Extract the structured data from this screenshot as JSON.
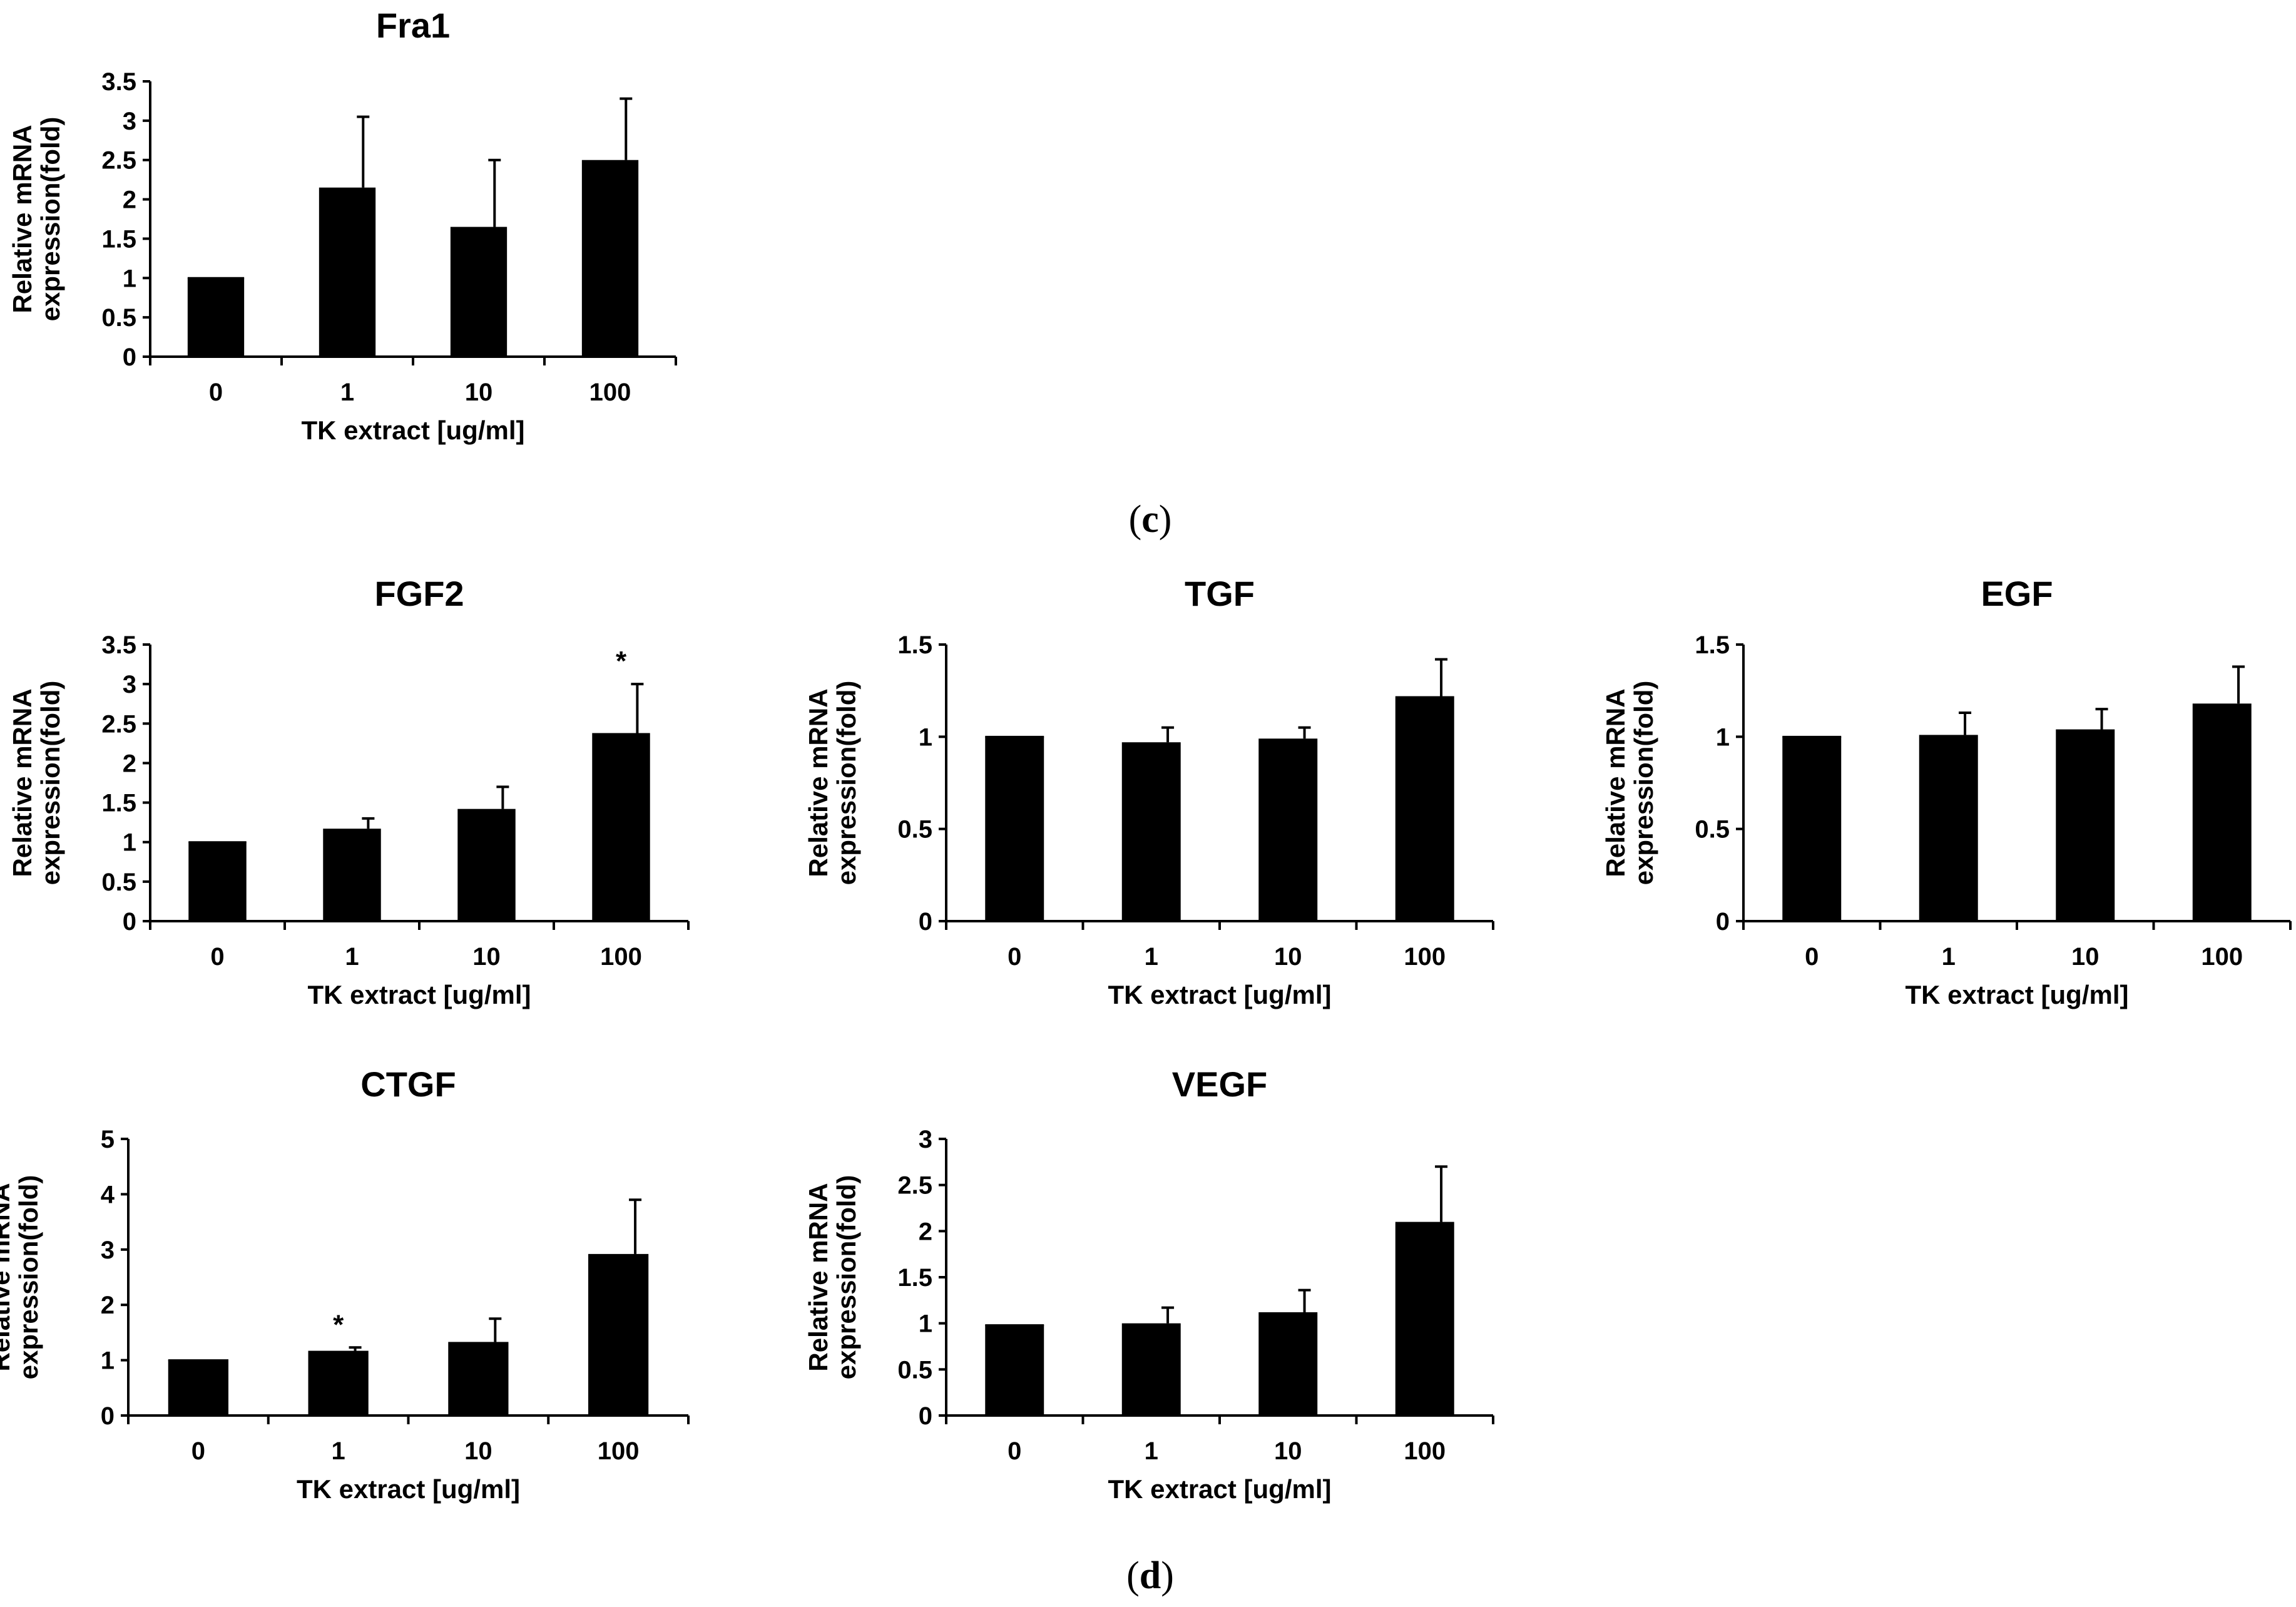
{
  "panel_labels": {
    "c": "c",
    "d": "d"
  },
  "chart_data": [
    {
      "id": "fra1",
      "type": "bar",
      "title": "Fra1",
      "xlabel": "TK extract [ug/ml]",
      "ylabel_lines": [
        "Relative mRNA",
        "expression(fold)"
      ],
      "categories": [
        "0",
        "1",
        "10",
        "100"
      ],
      "values": [
        1.0,
        2.15,
        1.65,
        2.5
      ],
      "errors": [
        0.0,
        0.9,
        0.85,
        0.78
      ],
      "significance": [
        "",
        "",
        "",
        ""
      ],
      "ylim": [
        0,
        3.5
      ],
      "yticks": [
        "0",
        "0.5",
        "1",
        "1.5",
        "2",
        "2.5",
        "3",
        "3.5"
      ]
    },
    {
      "id": "fgf2",
      "type": "bar",
      "title": "FGF2",
      "xlabel": "TK extract [ug/ml]",
      "ylabel_lines": [
        "Relative mRNA",
        "expression(fold)"
      ],
      "categories": [
        "0",
        "1",
        "10",
        "100"
      ],
      "values": [
        1.0,
        1.17,
        1.42,
        2.38
      ],
      "errors": [
        0.0,
        0.13,
        0.28,
        0.62
      ],
      "significance": [
        "",
        "",
        "",
        "*"
      ],
      "ylim": [
        0,
        3.5
      ],
      "yticks": [
        "0",
        "0.5",
        "1",
        "1.5",
        "2",
        "2.5",
        "3",
        "3.5"
      ]
    },
    {
      "id": "tgf",
      "type": "bar",
      "title": "TGF",
      "xlabel": "TK extract [ug/ml]",
      "ylabel_lines": [
        "Relative mRNA",
        "expression(fold)"
      ],
      "categories": [
        "0",
        "1",
        "10",
        "100"
      ],
      "values": [
        1.0,
        0.97,
        0.99,
        1.22
      ],
      "errors": [
        0.0,
        0.08,
        0.06,
        0.2
      ],
      "significance": [
        "",
        "",
        "",
        ""
      ],
      "ylim": [
        0,
        1.5
      ],
      "yticks": [
        "0",
        "0.5",
        "1",
        "1.5"
      ]
    },
    {
      "id": "egf",
      "type": "bar",
      "title": "EGF",
      "xlabel": "TK extract [ug/ml]",
      "ylabel_lines": [
        "Relative mRNA",
        "expression(fold)"
      ],
      "categories": [
        "0",
        "1",
        "10",
        "100"
      ],
      "values": [
        1.0,
        1.01,
        1.04,
        1.18
      ],
      "errors": [
        0.0,
        0.12,
        0.11,
        0.2
      ],
      "significance": [
        "",
        "",
        "",
        ""
      ],
      "ylim": [
        0,
        1.5
      ],
      "yticks": [
        "0",
        "0.5",
        "1",
        "1.5"
      ]
    },
    {
      "id": "ctgf",
      "type": "bar",
      "title": "CTGF",
      "xlabel": "TK extract [ug/ml]",
      "ylabel_lines": [
        "Relative mRNA",
        "expression(fold)"
      ],
      "categories": [
        "0",
        "1",
        "10",
        "100"
      ],
      "values": [
        1.0,
        1.17,
        1.33,
        2.92
      ],
      "errors": [
        0.0,
        0.06,
        0.42,
        0.98
      ],
      "significance": [
        "",
        "*",
        "",
        ""
      ],
      "ylim": [
        0,
        5
      ],
      "yticks": [
        "0",
        "1",
        "2",
        "3",
        "4",
        "5"
      ]
    },
    {
      "id": "vegf",
      "type": "bar",
      "title": "VEGF",
      "xlabel": "TK extract [ug/ml]",
      "ylabel_lines": [
        "Relative mRNA",
        "expression(fold)"
      ],
      "categories": [
        "0",
        "1",
        "10",
        "100"
      ],
      "values": [
        0.98,
        1.0,
        1.12,
        2.1
      ],
      "errors": [
        0.0,
        0.17,
        0.24,
        0.6
      ],
      "significance": [
        "",
        "",
        "",
        ""
      ],
      "ylim": [
        0,
        3
      ],
      "yticks": [
        "0",
        "0.5",
        "1",
        "1.5",
        "2",
        "2.5",
        "3"
      ]
    }
  ]
}
